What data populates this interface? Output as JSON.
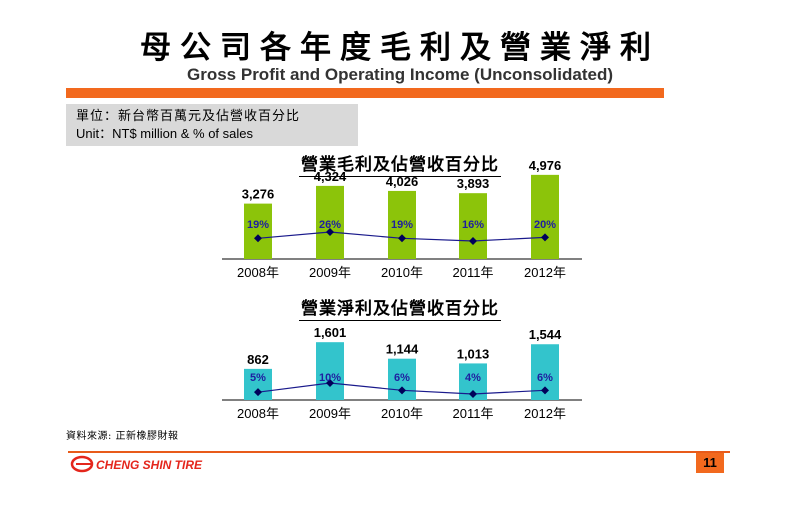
{
  "header": {
    "title_zh": "母公司各年度毛利及營業淨利",
    "title_en": "Gross Profit and Operating Income (Unconsolidated)"
  },
  "unit": {
    "zh": "單位：新台幣百萬元及佔營收百分比",
    "en": "Unit：NT$ million & % of sales"
  },
  "colors": {
    "accent": "#f2691e",
    "bar_chart1": "#8cc40a",
    "bar_chart2": "#33c4cc",
    "line": "#1a1a8c",
    "marker": "#00005a"
  },
  "chart_data": [
    {
      "type": "bar",
      "title": "營業毛利及佔營收百分比",
      "categories": [
        "2008年",
        "2009年",
        "2010年",
        "2011年",
        "2012年"
      ],
      "series": [
        {
          "values": [
            3276,
            4324,
            4026,
            3893,
            4976
          ],
          "labels": [
            "3,276",
            "4,324",
            "4,026",
            "3,893",
            "4,976"
          ]
        },
        {
          "type": "line",
          "values": [
            19,
            26,
            19,
            16,
            20
          ],
          "labels": [
            "19%",
            "26%",
            "19%",
            "16%",
            "20%"
          ]
        }
      ],
      "ylim": [
        0,
        5500
      ],
      "grid": false
    },
    {
      "type": "bar",
      "title": "營業淨利及佔營收百分比",
      "categories": [
        "2008年",
        "2009年",
        "2010年",
        "2011年",
        "2012年"
      ],
      "series": [
        {
          "values": [
            862,
            1601,
            1144,
            1013,
            1544
          ],
          "labels": [
            "862",
            "1,601",
            "1,144",
            "1,013",
            "1,544"
          ]
        },
        {
          "type": "line",
          "values": [
            5,
            10,
            6,
            4,
            6
          ],
          "labels": [
            "5%",
            "10%",
            "6%",
            "4%",
            "6%"
          ]
        }
      ],
      "ylim": [
        0,
        1800
      ],
      "grid": false
    }
  ],
  "footer": {
    "source": "資料來源: 正新橡膠財報",
    "logo_text": "CHENG SHIN TIRE",
    "page_number": "11"
  }
}
